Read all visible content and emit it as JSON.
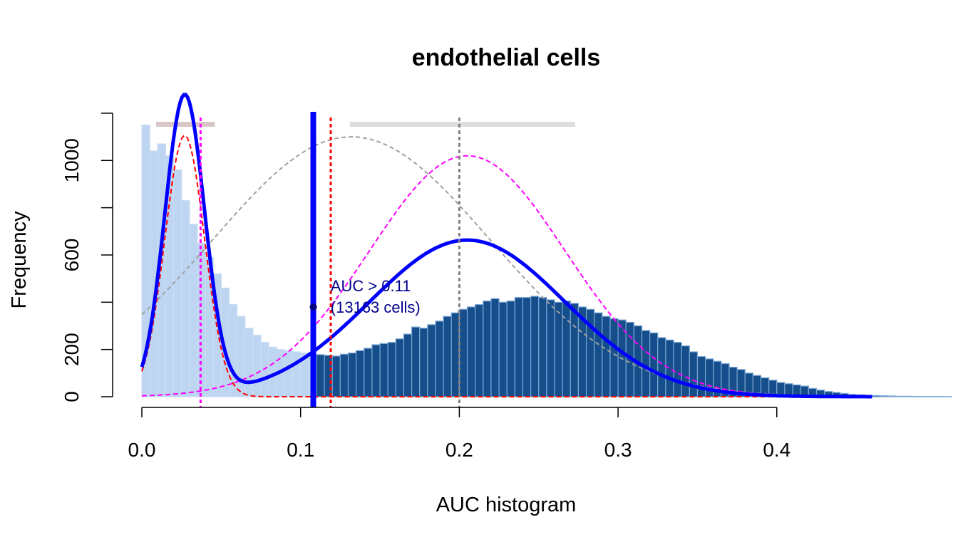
{
  "chart_data": {
    "type": "bar",
    "title": "endothelial cells",
    "xlabel": "AUC histogram",
    "ylabel": "Frequency",
    "xlim": [
      0,
      0.46
    ],
    "ylim": [
      0,
      1200
    ],
    "x_ticks": [
      0.0,
      0.1,
      0.2,
      0.3,
      0.4
    ],
    "x_tick_labels": [
      "0.0",
      "0.1",
      "0.2",
      "0.3",
      "0.4"
    ],
    "y_ticks": [
      0,
      200,
      400,
      600,
      800,
      1000,
      1200
    ],
    "y_tick_labels": [
      "0",
      "200",
      "",
      "600",
      "",
      "1000",
      ""
    ],
    "grid": false,
    "bin_width": 0.005,
    "bin_start": 0.0,
    "values": [
      1150,
      1040,
      1070,
      1020,
      960,
      830,
      730,
      650,
      590,
      520,
      460,
      390,
      340,
      290,
      260,
      230,
      210,
      200,
      195,
      190,
      185,
      180,
      178,
      175,
      172,
      180,
      185,
      195,
      205,
      220,
      225,
      230,
      245,
      265,
      295,
      290,
      305,
      320,
      340,
      355,
      370,
      380,
      390,
      405,
      415,
      400,
      405,
      420,
      420,
      425,
      420,
      410,
      400,
      405,
      395,
      380,
      370,
      355,
      340,
      330,
      325,
      315,
      300,
      280,
      270,
      250,
      240,
      230,
      215,
      190,
      170,
      160,
      150,
      140,
      125,
      115,
      100,
      90,
      80,
      70,
      60,
      55,
      50,
      45,
      35,
      28,
      22,
      18,
      14,
      10,
      8,
      6,
      5,
      4,
      3,
      2,
      2,
      1,
      1,
      1,
      1,
      1
    ],
    "threshold": 0.108,
    "colors": {
      "bar_below": "#bdd5f1",
      "bar_below_border": "#c8dcf4",
      "bar_above": "#154e8a",
      "bar_above_border": "#7aa6d6",
      "density": "#0000ff",
      "comp1": "#ff0000",
      "comp2": "#ff00ff",
      "global": "#a0a0a0",
      "annotation": "#00008b",
      "bar_range_1": "#d9c7c7",
      "bar_range_2": "#dddddd"
    },
    "density_curve": {
      "components": [
        {
          "mean": 0.027,
          "sd": 0.0125,
          "scale": 1105
        },
        {
          "mean": 0.205,
          "sd": 0.0615,
          "scale": 1020
        }
      ],
      "weights": [
        0.3,
        0.65
      ]
    },
    "global_normal": {
      "mean": 0.132,
      "sd": 0.087,
      "scale": 1100
    },
    "vlines": [
      {
        "x": 0.108,
        "style": "solid",
        "color": "#0000ff",
        "width": 8
      },
      {
        "x": 0.119,
        "style": "dotted",
        "color": "#ff0000",
        "width": 3
      },
      {
        "x": 0.037,
        "style": "dotted",
        "color": "#ff00ff",
        "width": 3
      },
      {
        "x": 0.2,
        "style": "dotted",
        "color": "#808080",
        "width": 3
      }
    ],
    "range_bars": [
      {
        "x0": 0.009,
        "x1": 0.046,
        "y": 1150,
        "color": "#d9c7c7"
      },
      {
        "x0": 0.131,
        "x1": 0.273,
        "y": 1150,
        "color": "#dddddd"
      }
    ],
    "annotation": {
      "line1": "AUC > 0.11",
      "line2": "(13163 cells)",
      "x": 0.118,
      "y": 530
    },
    "intersection_point": {
      "x": 0.108,
      "y": 380
    }
  }
}
